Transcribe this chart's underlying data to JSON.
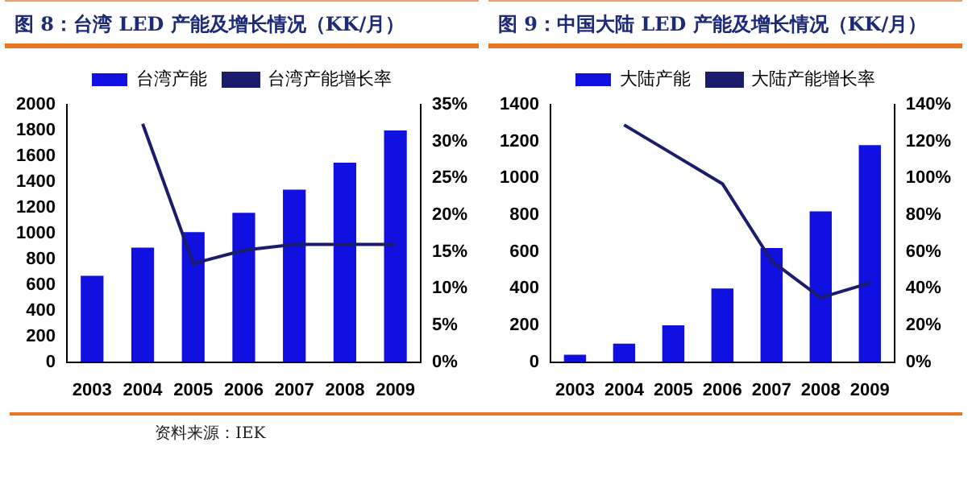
{
  "chart_data": [
    {
      "type": "bar",
      "title": "图 8：台湾 LED 产能及增长情况（KK/月）",
      "categories": [
        "2003",
        "2004",
        "2005",
        "2006",
        "2007",
        "2008",
        "2009"
      ],
      "series": [
        {
          "name": "台湾产能",
          "color": "#1010e0",
          "values": [
            670,
            890,
            1010,
            1160,
            1340,
            1550,
            1800
          ]
        },
        {
          "name": "台湾产能增长率",
          "type": "line",
          "axis": "y2",
          "color": "#1c1c6c",
          "values": [
            null,
            32.4,
            13.4,
            15.2,
            16,
            16,
            16
          ]
        }
      ],
      "ylim": [
        0,
        2000
      ],
      "yticks": [
        0,
        200,
        400,
        600,
        800,
        1000,
        1200,
        1400,
        1600,
        1800,
        2000
      ],
      "y2lim": [
        0,
        35
      ],
      "y2ticks": [
        {
          "value": 0,
          "label": "0%"
        },
        {
          "value": 5,
          "label": "5%"
        },
        {
          "value": 10,
          "label": "10%"
        },
        {
          "value": 15,
          "label": "15%"
        },
        {
          "value": 20,
          "label": "20%"
        },
        {
          "value": 25,
          "label": "25%"
        },
        {
          "value": 30,
          "label": "30%"
        },
        {
          "value": 35,
          "label": "35%"
        }
      ],
      "legend": "top",
      "marker": "none",
      "annotations": [
        "资料来源：IEK"
      ]
    },
    {
      "type": "bar",
      "title": "图 9：中国大陆 LED 产能及增长情况（KK/月）",
      "categories": [
        "2003",
        "2004",
        "2005",
        "2006",
        "2007",
        "2008",
        "2009"
      ],
      "series": [
        {
          "name": "大陆产能",
          "color": "#1010e0",
          "values": [
            40,
            100,
            200,
            400,
            620,
            820,
            1180
          ]
        },
        {
          "name": "大陆产能增长率",
          "type": "line",
          "axis": "y2",
          "color": "#1c1c6c",
          "values": [
            null,
            129,
            113,
            97,
            55,
            35,
            43
          ]
        }
      ],
      "ylim": [
        0,
        1400
      ],
      "yticks": [
        0,
        200,
        400,
        600,
        800,
        1000,
        1200,
        1400
      ],
      "y2lim": [
        0,
        140
      ],
      "y2ticks": [
        {
          "value": 0,
          "label": "0%"
        },
        {
          "value": 20,
          "label": "20%"
        },
        {
          "value": 40,
          "label": "40%"
        },
        {
          "value": 60,
          "label": "60%"
        },
        {
          "value": 80,
          "label": "80%"
        },
        {
          "value": 100,
          "label": "100%"
        },
        {
          "value": 120,
          "label": "120%"
        },
        {
          "value": 140,
          "label": "140%"
        }
      ],
      "legend": "top",
      "marker": "none"
    }
  ]
}
